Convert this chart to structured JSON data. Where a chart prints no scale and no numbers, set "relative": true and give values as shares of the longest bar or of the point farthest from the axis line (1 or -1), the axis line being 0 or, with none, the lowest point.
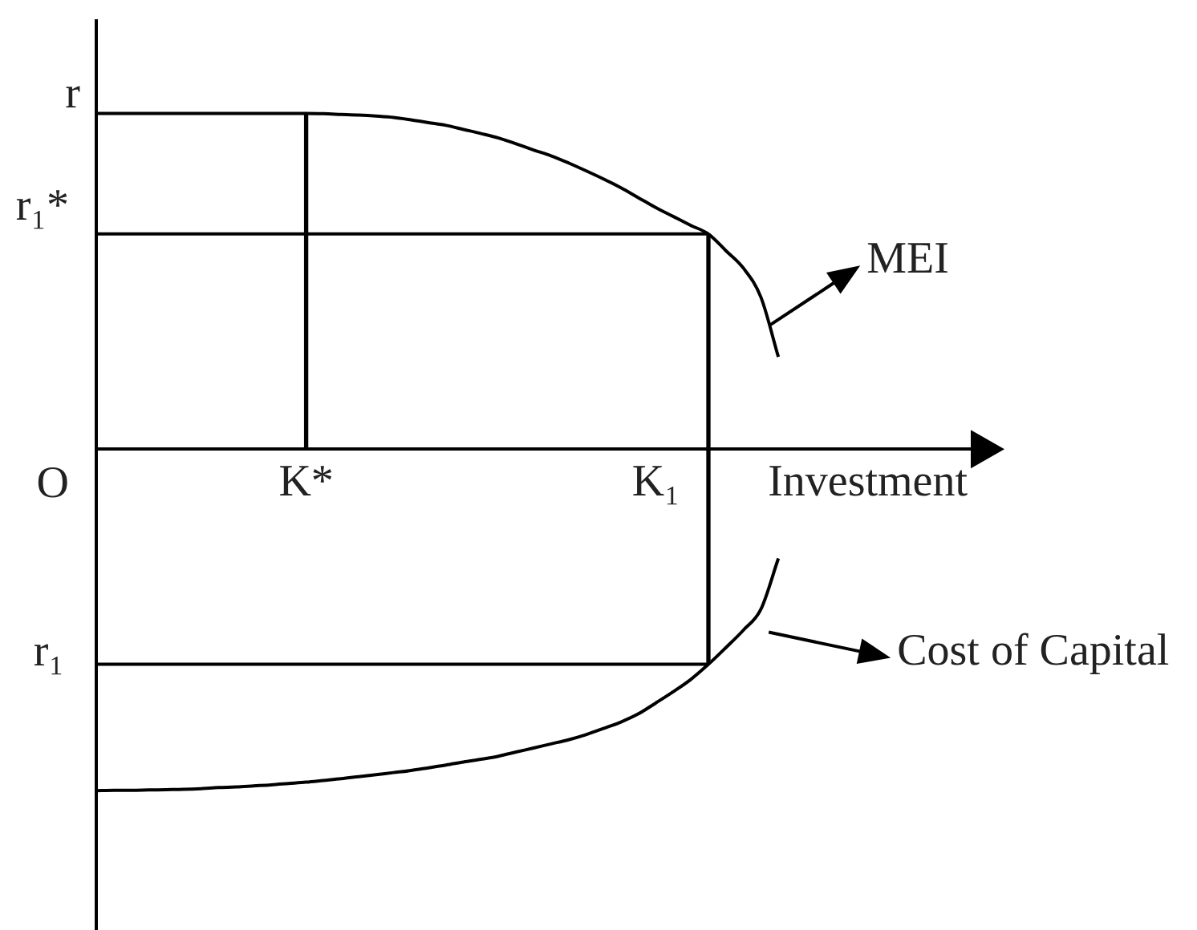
{
  "chart_data": {
    "type": "line",
    "relative": true,
    "xlabel": "Investment",
    "legend": "right",
    "categories": [
      null,
      null,
      null,
      null,
      null,
      null,
      null,
      null,
      null,
      null,
      null,
      null,
      "K*",
      null,
      null,
      null,
      null,
      null,
      null,
      null,
      null,
      null,
      null,
      null,
      null,
      null,
      null,
      null,
      null,
      null,
      null,
      null,
      "K₁",
      null,
      null,
      null,
      null,
      null,
      null,
      null,
      null,
      null,
      null,
      null,
      null,
      null,
      null,
      null,
      null,
      null,
      null
    ],
    "series": [
      {
        "name": "MEI",
        "color": "#000000",
        "values": [
          0.983,
          0.983,
          0.983,
          0.983,
          0.983,
          0.983,
          0.983,
          0.983,
          0.983,
          0.983,
          0.983,
          0.983,
          0.983,
          0.982,
          0.98,
          0.978,
          0.975,
          0.971,
          0.964,
          0.956,
          0.948,
          0.936,
          0.924,
          0.911,
          0.894,
          0.876,
          0.859,
          0.838,
          0.815,
          0.791,
          0.765,
          0.736,
          0.707,
          0.681,
          0.655,
          0.63,
          0.581,
          0.53,
          0.445,
          0.27,
          null,
          null,
          null,
          null,
          null,
          null,
          null,
          null,
          null,
          null,
          null
        ]
      },
      {
        "name": "Cost of Capital",
        "color": "#000000",
        "values": [
          -1,
          -0.999,
          -0.999,
          -0.998,
          -0.997,
          -0.996,
          -0.994,
          -0.991,
          -0.989,
          -0.986,
          -0.983,
          -0.979,
          -0.975,
          -0.97,
          -0.965,
          -0.959,
          -0.953,
          -0.947,
          -0.941,
          -0.933,
          -0.925,
          -0.916,
          -0.908,
          -0.899,
          -0.887,
          -0.875,
          -0.863,
          -0.851,
          -0.836,
          -0.818,
          -0.799,
          -0.775,
          -0.743,
          -0.71,
          -0.674,
          -0.63,
          -0.581,
          -0.53,
          -0.469,
          -0.32,
          null,
          null,
          null,
          null,
          null,
          null,
          null,
          null,
          null,
          null,
          null
        ]
      },
      {
        "color": "#000000",
        "values": [
          0.63,
          0.63,
          0.63,
          0.63,
          0.63,
          0.63,
          0.63,
          0.63,
          0.63,
          0.63,
          0.63,
          0.63,
          0.63,
          0.63,
          0.63,
          0.63,
          0.63,
          0.63,
          0.63,
          0.63,
          0.63,
          0.63,
          0.63,
          0.63,
          0.63,
          0.63,
          0.63,
          0.63,
          0.63,
          0.63,
          0.63,
          0.63,
          0.63,
          0.63,
          0.63,
          0.63,
          null,
          null,
          null,
          null,
          null,
          null,
          null,
          null,
          null,
          null,
          null,
          null,
          null,
          null,
          null
        ]
      },
      {
        "color": "#000000",
        "values": [
          -0.63,
          -0.63,
          -0.63,
          -0.63,
          -0.63,
          -0.63,
          -0.63,
          -0.63,
          -0.63,
          -0.63,
          -0.63,
          -0.63,
          -0.63,
          -0.63,
          -0.63,
          -0.63,
          -0.63,
          -0.63,
          -0.63,
          -0.63,
          -0.63,
          -0.63,
          -0.63,
          -0.63,
          -0.63,
          -0.63,
          -0.63,
          -0.63,
          -0.63,
          -0.63,
          -0.63,
          -0.63,
          -0.63,
          -0.63,
          -0.63,
          -0.63,
          null,
          null,
          null,
          null,
          null,
          null,
          null,
          null,
          null,
          null,
          null,
          null,
          null,
          null,
          null
        ]
      },
      {
        "type": "bar",
        "color": "#000000",
        "values": [
          null,
          null,
          null,
          null,
          null,
          null,
          null,
          null,
          null,
          null,
          null,
          null,
          0.983,
          null,
          null,
          null,
          null,
          null,
          null,
          null,
          null,
          null,
          null,
          null,
          null,
          null,
          null,
          null,
          null,
          null,
          null,
          null,
          null,
          null,
          null,
          0.625,
          null,
          null,
          null,
          null,
          null,
          null,
          null,
          null,
          null,
          null,
          null,
          null,
          null,
          null,
          null
        ]
      },
      {
        "type": "bar",
        "color": "#000000",
        "values": [
          null,
          null,
          null,
          null,
          null,
          null,
          null,
          null,
          null,
          null,
          null,
          null,
          null,
          null,
          null,
          null,
          null,
          null,
          null,
          null,
          null,
          null,
          null,
          null,
          null,
          null,
          null,
          null,
          null,
          null,
          null,
          null,
          null,
          null,
          null,
          -0.625,
          null,
          null,
          null,
          null,
          null,
          null,
          null,
          null,
          null,
          null,
          null,
          null,
          null,
          null,
          null
        ]
      }
    ],
    "annotations": [
      "r",
      "r₁*",
      "O",
      "r₁"
    ]
  }
}
